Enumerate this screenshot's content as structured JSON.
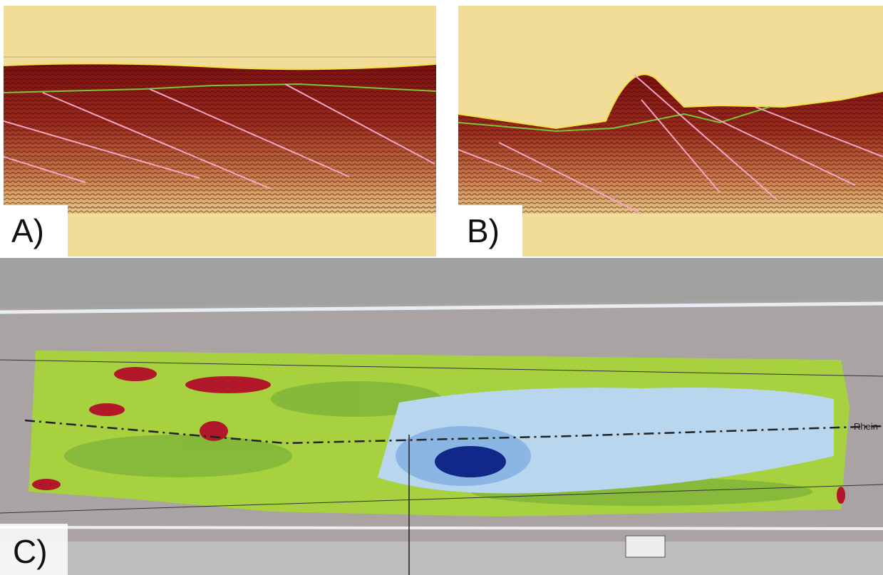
{
  "panels": [
    {
      "label": "A)"
    },
    {
      "label": "B)"
    },
    {
      "label": "C)",
      "annotation": "Rhein"
    }
  ]
}
